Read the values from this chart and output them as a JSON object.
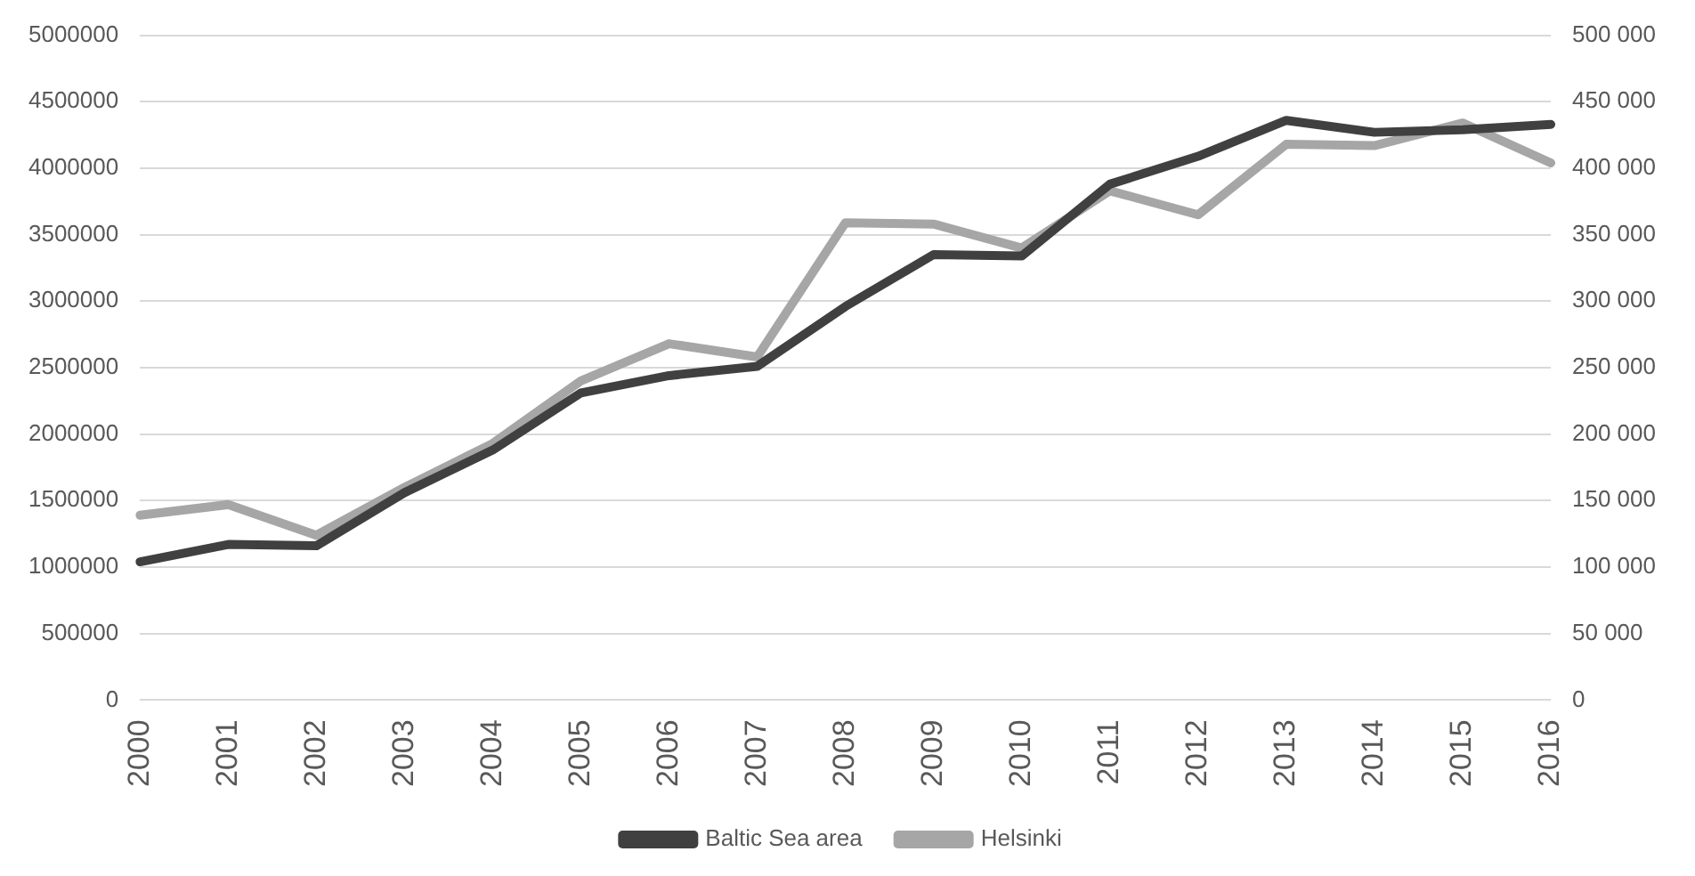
{
  "chart_data": {
    "type": "line",
    "categories": [
      "2000",
      "2001",
      "2002",
      "2003",
      "2004",
      "2005",
      "2006",
      "2007",
      "2008",
      "2009",
      "2010",
      "2011",
      "2012",
      "2013",
      "2014",
      "2015",
      "2016"
    ],
    "series": [
      {
        "name": "Baltic Sea area",
        "color": "#404040",
        "values": [
          1040000,
          1170000,
          1160000,
          1560000,
          1880000,
          2310000,
          2440000,
          2510000,
          2960000,
          3350000,
          3340000,
          3880000,
          4090000,
          4360000,
          4270000,
          4290000,
          4330000
        ]
      },
      {
        "name": "Helsinki",
        "color": "#a6a6a6",
        "axis": "y2",
        "values": [
          139000,
          147000,
          124000,
          160000,
          193000,
          240000,
          268000,
          258000,
          359000,
          358000,
          340000,
          383000,
          365000,
          418000,
          417000,
          434000,
          404000
        ]
      }
    ],
    "ylim": [
      0,
      5000000
    ],
    "yticks": [
      0,
      500000,
      1000000,
      1500000,
      2000000,
      2500000,
      3000000,
      3500000,
      4000000,
      4500000,
      5000000
    ],
    "y2lim": [
      0,
      500000
    ],
    "y2ticks": [
      0,
      {
        "value": 50000,
        "label": "50 000"
      },
      {
        "value": 100000,
        "label": "100 000"
      },
      {
        "value": 150000,
        "label": "150 000"
      },
      {
        "value": 200000,
        "label": "200 000"
      },
      {
        "value": 250000,
        "label": "250 000"
      },
      {
        "value": 300000,
        "label": "300 000"
      },
      {
        "value": 350000,
        "label": "350 000"
      },
      {
        "value": 400000,
        "label": "400 000"
      },
      {
        "value": 450000,
        "label": "450 000"
      },
      {
        "value": 500000,
        "label": "500 000"
      }
    ],
    "grid": "y",
    "legend": "bottom",
    "marker": "none",
    "line_style": "solid"
  }
}
